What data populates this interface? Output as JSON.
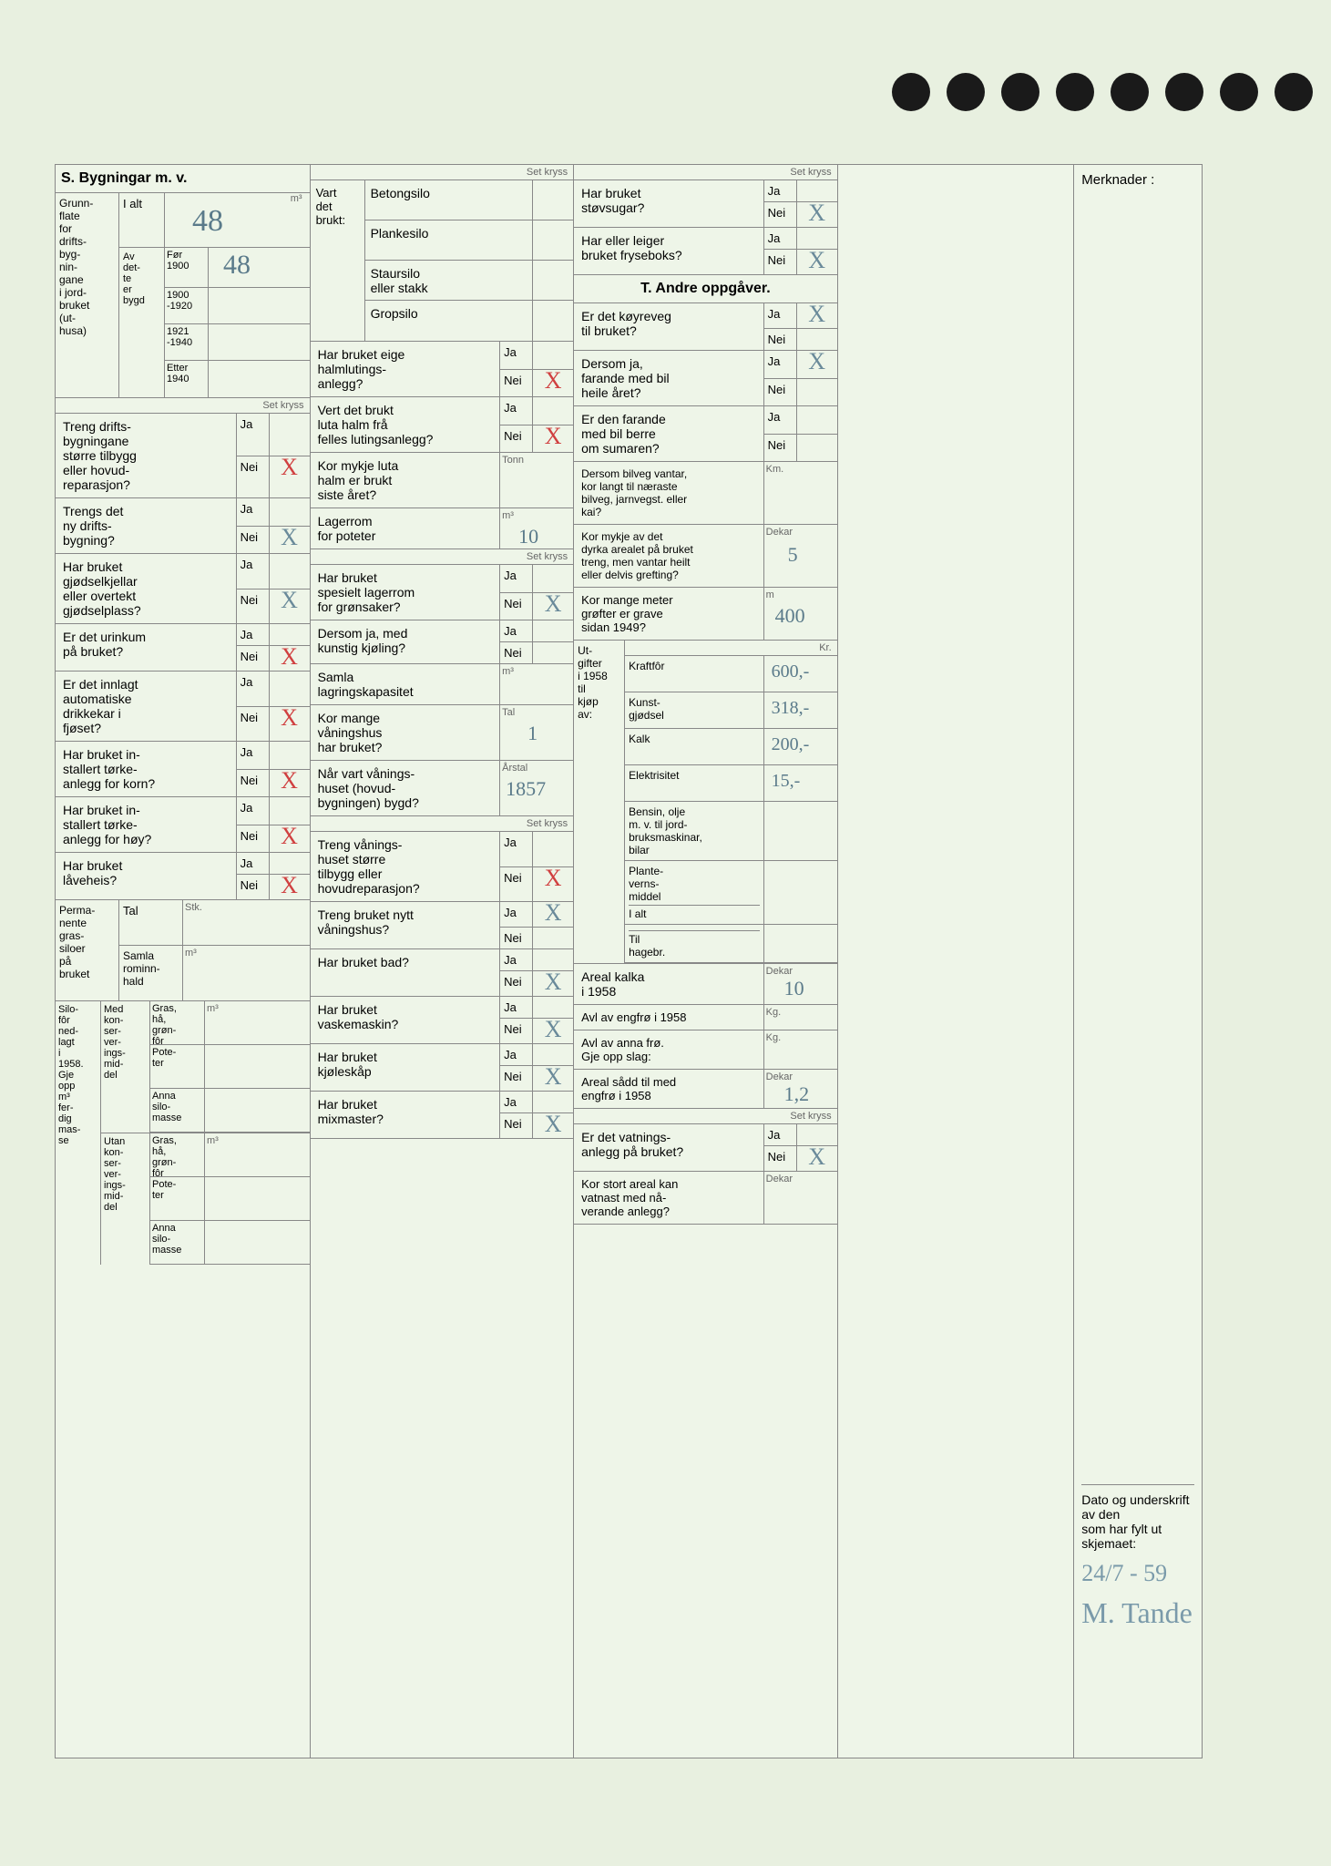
{
  "doc": {
    "bg_color": "#e8f0e0",
    "paper_color": "#eef5e8",
    "border_color": "#888888",
    "text_color": "#333333",
    "hand_color": "#5a7a8a",
    "hand_red": "#d04040",
    "font_body": "Arial",
    "font_hand": "Comic Sans MS"
  },
  "headers": {
    "s": "S. Bygningar m. v.",
    "t": "T. Andre oppgåver.",
    "set_kryss": "Set kryss",
    "merknader": "Merknader :"
  },
  "col1": {
    "grunnflate": {
      "label": "Grunn-\nflate\nfor\ndrifts-\nbyg-\nnin-\ngane\ni jord-\nbruket\n(ut-\nhusa)",
      "ialt_label": "I alt",
      "m3_label": "m³",
      "ialt_value": "48",
      "av_dette_label": "Av\ndet-\nte\ner\nbygd",
      "periods": [
        {
          "label": "Før\n1900",
          "value": "48"
        },
        {
          "label": "1900\n-1920",
          "value": ""
        },
        {
          "label": "1921\n-1940",
          "value": ""
        },
        {
          "label": "Etter\n1940",
          "value": ""
        }
      ]
    },
    "questions": [
      {
        "text": "Treng drifts-\nbygningane\nstørre tilbygg\neller hovud-\nreparasjon?",
        "ja": "",
        "nei": "X",
        "nei_red": true
      },
      {
        "text": "Trengs det\nny drifts-\nbygning?",
        "ja": "",
        "nei": "X",
        "nei_red": false
      },
      {
        "text": "Har bruket\ngjødselkjellar\neller overtekt\ngjødselplass?",
        "ja": "",
        "nei": "X",
        "nei_red": false
      },
      {
        "text": "Er det urinkum\npå bruket?",
        "ja": "",
        "nei": "X",
        "nei_red": true
      },
      {
        "text": "Er det innlagt\nautomatiske\ndrikkekar i\nfjøset?",
        "ja": "",
        "nei": "X",
        "nei_red": true
      },
      {
        "text": "Har bruket in-\nstallert tørke-\nanlegg for korn?",
        "ja": "",
        "nei": "X",
        "nei_red": true
      },
      {
        "text": "Har bruket in-\nstallert tørke-\nanlegg for høy?",
        "ja": "",
        "nei": "X",
        "nei_red": true
      },
      {
        "text": "Har bruket\nlåveheis?",
        "ja": "",
        "nei": "X",
        "nei_red": true
      }
    ],
    "permanente": {
      "label": "Perma-\nnente\ngras-\nsiloer\npå\nbruket",
      "tal_label": "Tal",
      "stk_label": "Stk.",
      "samla_label": "Samla\nrominn-\nhald",
      "m3_label": "m³"
    },
    "silofor": {
      "label": "Silo-\nfôr\nned-\nlagt\ni\n1958.\nGje\nopp\nm³\nfer-\ndig\nmas-\nse",
      "med_label": "Med\nkon-\nser-\nver-\nings-\nmid-\ndel",
      "utan_label": "Utan\nkon-\nser-\nver-\nings-\nmid-\ndel",
      "rows": [
        "Gras,\nhå,\ngrøn-\nfôr",
        "Pote-\nter",
        "Anna\nsilo-\nmasse"
      ],
      "m3_label": "m³"
    }
  },
  "col2": {
    "vart_brukt": {
      "label": "Vart\ndet\nbrukt:",
      "options": [
        "Betongsilo",
        "Plankesilo",
        "Staursilo\neller stakk",
        "Gropsilo"
      ]
    },
    "questions": [
      {
        "text": "Har bruket eige\nhalmlutings-\nanlegg?",
        "ja": "",
        "nei": "X",
        "nei_red": true
      },
      {
        "text": "Vert det brukt\nluta halm frå\nfelles lutingsanlegg?",
        "ja": "",
        "nei": "X",
        "nei_red": true
      }
    ],
    "luta_halm": {
      "label": "Kor mykje luta\nhalm er brukt\nsiste året?",
      "unit": "Tonn",
      "value": ""
    },
    "poteter": {
      "label": "Lagerrom\nfor poteter",
      "unit": "m³",
      "value": "10"
    },
    "questions2": [
      {
        "text": "Har bruket\nspesielt lagerrom\nfor grønsaker?",
        "ja": "",
        "nei": "X",
        "nei_red": false
      },
      {
        "text": "Dersom ja, med\nkunstig kjøling?",
        "ja": "",
        "nei": ""
      }
    ],
    "samla_lager": {
      "label": "Samla\nlagringskapasitet",
      "unit": "m³",
      "value": ""
    },
    "vaningshus": {
      "label": "Kor mange\nvåningshus\nhar bruket?",
      "unit": "Tal",
      "value": "1"
    },
    "bygd": {
      "label": "Når vart vånings-\nhuset (hovud-\nbygningen) bygd?",
      "unit": "Årstal",
      "value": "1857"
    },
    "questions3": [
      {
        "text": "Treng vånings-\nhuset større\ntilbygg eller\nhovudreparasjon?",
        "ja": "",
        "nei": "X",
        "nei_red": true
      },
      {
        "text": "Treng bruket nytt\nvåningshus?",
        "ja": "X",
        "nei": ""
      },
      {
        "text": "Har bruket bad?",
        "ja": "",
        "nei": "X"
      },
      {
        "text": "Har bruket\nvaskemaskin?",
        "ja": "",
        "nei": "X"
      },
      {
        "text": "Har bruket\nkjøleskåp",
        "ja": "",
        "nei": "X"
      },
      {
        "text": "Har bruket\nmixmaster?",
        "ja": "",
        "nei": "X"
      }
    ]
  },
  "col3": {
    "questions": [
      {
        "text": "Har bruket\nstøvsugar?",
        "ja": "",
        "nei": "X"
      },
      {
        "text": "Har eller leiger\nbruket fryseboks?",
        "ja": "",
        "nei": "X"
      }
    ],
    "t_questions": [
      {
        "text": "Er det køyreveg\ntil bruket?",
        "ja": "X",
        "nei": ""
      },
      {
        "text": "Dersom ja,\nfarande med bil\nheile året?",
        "ja": "X",
        "nei": ""
      },
      {
        "text": "Er den farande\nmed bil berre\nom sumaren?",
        "ja": "",
        "nei": ""
      }
    ],
    "bilveg": {
      "label": "Dersom bilveg vantar,\nkor langt til næraste\nbilveg, jarnvegst. eller\nkai?",
      "unit": "Km.",
      "value": ""
    },
    "grefting": {
      "label": "Kor mykje av det\ndyrka arealet på bruket\ntreng, men vantar heilt\neller delvis grefting?",
      "unit": "Dekar",
      "value": "5"
    },
    "grofter": {
      "label": "Kor mange meter\ngrøfter er grave\nsidan 1949?",
      "unit": "m",
      "value": "400"
    },
    "utgifter": {
      "label": "Ut-\ngifter\ni 1958\ntil\nkjøp\nav:",
      "unit": "Kr.",
      "rows": [
        {
          "label": "Kraftfôr",
          "value": "600,-"
        },
        {
          "label": "Kunst-\ngjødsel",
          "value": "318,-"
        },
        {
          "label": "Kalk",
          "value": "200,-"
        },
        {
          "label": "Elektrisitet",
          "value": "15,-"
        },
        {
          "label": "Bensin, olje\nm. v. til jord-\nbruksmaskinar,\nbilar",
          "value": ""
        },
        {
          "label": "Plante-\nverns-\nmiddel",
          "sub": "I alt",
          "value": ""
        },
        {
          "label": "",
          "sub": "Til\nhagebr.",
          "value": ""
        }
      ]
    },
    "kalka": {
      "label": "Areal kalka\ni 1958",
      "unit": "Dekar",
      "value": "10"
    },
    "engfro": {
      "label": "Avl av engfrø i 1958",
      "unit": "Kg.",
      "value": ""
    },
    "anna_fro": {
      "label": "Avl av anna frø.\nGje opp slag:",
      "unit": "Kg.",
      "value": ""
    },
    "sadd": {
      "label": "Areal sådd til med\nengfrø i 1958",
      "unit": "Dekar",
      "value": "1,2"
    },
    "vatning": {
      "text": "Er det vatnings-\nanlegg på bruket?",
      "ja": "",
      "nei": "X"
    },
    "vatnast": {
      "label": "Kor stort areal kan\nvatnast med nå-\nverande anlegg?",
      "unit": "Dekar",
      "value": ""
    }
  },
  "col5": {
    "sig_label": "Dato og underskrift av den\nsom har fylt ut skjemaet:",
    "date": "24/7 - 59",
    "sig": "M. Tande"
  }
}
